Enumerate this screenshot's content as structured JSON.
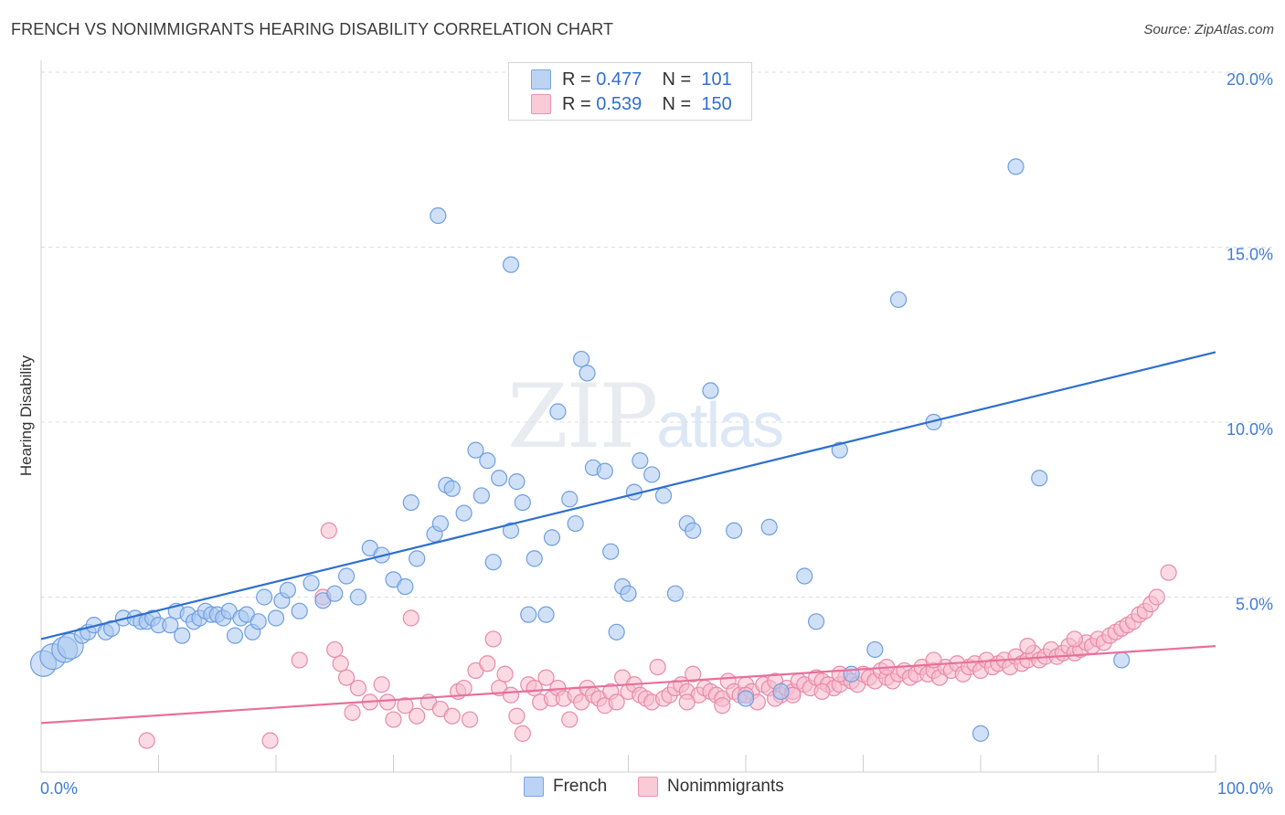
{
  "title": "FRENCH VS NONIMMIGRANTS HEARING DISABILITY CORRELATION CHART",
  "source": "Source: ZipAtlas.com",
  "watermark": {
    "zip": "ZIP",
    "atlas": "atlas"
  },
  "legend": {
    "r_label": "R =",
    "n_label": "N =",
    "french": {
      "r": "0.477",
      "n": "101"
    },
    "nonimmigrants": {
      "r": "0.539",
      "n": "150"
    }
  },
  "bottom_legend": {
    "french": "French",
    "nonimmigrants": "Nonimmigrants"
  },
  "colors": {
    "french_fill": "#aac8f0",
    "french_stroke": "#6f9ee0",
    "french_line": "#2d6fd0",
    "nonimm_fill": "#f7bccd",
    "nonimm_stroke": "#e88aa8",
    "nonimm_line": "#e8709a",
    "tick_text": "#3f7bd6",
    "grid": "#dddddd"
  },
  "chart_data": {
    "type": "scatter",
    "ylabel": "Hearing Disability",
    "xlim": [
      0,
      100
    ],
    "ylim": [
      0,
      20
    ],
    "x_tick_labels": [
      "0.0%",
      "100.0%"
    ],
    "y_ticks": [
      5,
      10,
      15,
      20
    ],
    "y_tick_labels": [
      "5.0%",
      "10.0%",
      "15.0%",
      "20.0%"
    ],
    "grid": true,
    "legend_placement": "top-center",
    "series": [
      {
        "name": "French",
        "trend": [
          [
            0,
            3.8
          ],
          [
            100,
            12.0
          ]
        ],
        "points": [
          [
            0.2,
            3.1
          ],
          [
            1.0,
            3.3
          ],
          [
            2.0,
            3.5
          ],
          [
            2.5,
            3.6
          ],
          [
            3.5,
            3.9
          ],
          [
            4.0,
            4.0
          ],
          [
            4.5,
            4.2
          ],
          [
            5.5,
            4.0
          ],
          [
            6.0,
            4.1
          ],
          [
            7.0,
            4.4
          ],
          [
            8.0,
            4.4
          ],
          [
            8.5,
            4.3
          ],
          [
            9.0,
            4.3
          ],
          [
            9.5,
            4.4
          ],
          [
            10.0,
            4.2
          ],
          [
            11.0,
            4.2
          ],
          [
            11.5,
            4.6
          ],
          [
            12.0,
            3.9
          ],
          [
            12.5,
            4.5
          ],
          [
            13.0,
            4.3
          ],
          [
            13.5,
            4.4
          ],
          [
            14.0,
            4.6
          ],
          [
            14.5,
            4.5
          ],
          [
            15.0,
            4.5
          ],
          [
            15.5,
            4.4
          ],
          [
            16.0,
            4.6
          ],
          [
            16.5,
            3.9
          ],
          [
            17.0,
            4.4
          ],
          [
            17.5,
            4.5
          ],
          [
            18.0,
            4.0
          ],
          [
            18.5,
            4.3
          ],
          [
            19.0,
            5.0
          ],
          [
            20.0,
            4.4
          ],
          [
            20.5,
            4.9
          ],
          [
            21.0,
            5.2
          ],
          [
            22.0,
            4.6
          ],
          [
            23.0,
            5.4
          ],
          [
            24.0,
            4.9
          ],
          [
            25.0,
            5.1
          ],
          [
            26.0,
            5.6
          ],
          [
            27.0,
            5.0
          ],
          [
            28.0,
            6.4
          ],
          [
            29.0,
            6.2
          ],
          [
            30.0,
            5.5
          ],
          [
            31.0,
            5.3
          ],
          [
            31.5,
            7.7
          ],
          [
            32.0,
            6.1
          ],
          [
            33.5,
            6.8
          ],
          [
            34.0,
            7.1
          ],
          [
            34.5,
            8.2
          ],
          [
            35.0,
            8.1
          ],
          [
            36.0,
            7.4
          ],
          [
            37.0,
            9.2
          ],
          [
            37.5,
            7.9
          ],
          [
            38.0,
            8.9
          ],
          [
            38.5,
            6.0
          ],
          [
            39.0,
            8.4
          ],
          [
            40.0,
            6.9
          ],
          [
            40.5,
            8.3
          ],
          [
            41.0,
            7.7
          ],
          [
            41.5,
            4.5
          ],
          [
            42.0,
            6.1
          ],
          [
            43.0,
            4.5
          ],
          [
            43.5,
            6.7
          ],
          [
            44.0,
            10.3
          ],
          [
            45.0,
            7.8
          ],
          [
            45.5,
            7.1
          ],
          [
            46.0,
            11.8
          ],
          [
            46.5,
            11.4
          ],
          [
            47.0,
            8.7
          ],
          [
            48.0,
            8.6
          ],
          [
            48.5,
            6.3
          ],
          [
            49.0,
            4.0
          ],
          [
            49.5,
            5.3
          ],
          [
            50.0,
            5.1
          ],
          [
            50.5,
            8.0
          ],
          [
            51.0,
            8.9
          ],
          [
            52.0,
            8.5
          ],
          [
            53.0,
            7.9
          ],
          [
            54.0,
            5.1
          ],
          [
            55.0,
            7.1
          ],
          [
            55.5,
            6.9
          ],
          [
            57.0,
            10.9
          ],
          [
            59.0,
            6.9
          ],
          [
            60.0,
            2.1
          ],
          [
            62.0,
            7.0
          ],
          [
            63.0,
            2.3
          ],
          [
            65.0,
            5.6
          ],
          [
            66.0,
            4.3
          ],
          [
            68.0,
            9.2
          ],
          [
            69.0,
            2.8
          ],
          [
            71.0,
            3.5
          ],
          [
            73.0,
            13.5
          ],
          [
            76.0,
            10.0
          ],
          [
            80.0,
            1.1
          ],
          [
            85.0,
            8.4
          ],
          [
            92.0,
            3.2
          ],
          [
            33.8,
            15.9
          ],
          [
            40.0,
            14.5
          ],
          [
            45.0,
            18.9
          ],
          [
            83.0,
            17.3
          ]
        ]
      },
      {
        "name": "Nonimmigrants",
        "trend": [
          [
            0,
            1.4
          ],
          [
            100,
            3.6
          ]
        ],
        "points": [
          [
            9.0,
            0.9
          ],
          [
            19.5,
            0.9
          ],
          [
            22.0,
            3.2
          ],
          [
            24.0,
            5.0
          ],
          [
            24.5,
            6.9
          ],
          [
            25.0,
            3.5
          ],
          [
            25.5,
            3.1
          ],
          [
            26.0,
            2.7
          ],
          [
            26.5,
            1.7
          ],
          [
            27.0,
            2.4
          ],
          [
            28.0,
            2.0
          ],
          [
            29.0,
            2.5
          ],
          [
            29.5,
            2.0
          ],
          [
            30.0,
            1.5
          ],
          [
            31.0,
            1.9
          ],
          [
            31.5,
            4.4
          ],
          [
            32.0,
            1.6
          ],
          [
            33.0,
            2.0
          ],
          [
            34.0,
            1.8
          ],
          [
            35.0,
            1.6
          ],
          [
            35.5,
            2.3
          ],
          [
            36.0,
            2.4
          ],
          [
            36.5,
            1.5
          ],
          [
            37.0,
            2.9
          ],
          [
            38.0,
            3.1
          ],
          [
            38.5,
            3.8
          ],
          [
            39.0,
            2.4
          ],
          [
            39.5,
            2.8
          ],
          [
            40.0,
            2.2
          ],
          [
            40.5,
            1.6
          ],
          [
            41.0,
            1.1
          ],
          [
            41.5,
            2.5
          ],
          [
            42.0,
            2.4
          ],
          [
            42.5,
            2.0
          ],
          [
            43.0,
            2.7
          ],
          [
            43.5,
            2.1
          ],
          [
            44.0,
            2.4
          ],
          [
            44.5,
            2.1
          ],
          [
            45.0,
            1.5
          ],
          [
            45.5,
            2.2
          ],
          [
            46.0,
            2.0
          ],
          [
            46.5,
            2.4
          ],
          [
            47.0,
            2.2
          ],
          [
            47.5,
            2.1
          ],
          [
            48.0,
            1.9
          ],
          [
            48.5,
            2.3
          ],
          [
            49.0,
            2.0
          ],
          [
            49.5,
            2.7
          ],
          [
            50.0,
            2.3
          ],
          [
            50.5,
            2.5
          ],
          [
            51.0,
            2.2
          ],
          [
            51.5,
            2.1
          ],
          [
            52.0,
            2.0
          ],
          [
            52.5,
            3.0
          ],
          [
            53.0,
            2.1
          ],
          [
            53.5,
            2.2
          ],
          [
            54.0,
            2.4
          ],
          [
            54.5,
            2.5
          ],
          [
            55.0,
            2.3
          ],
          [
            55.5,
            2.8
          ],
          [
            56.0,
            2.2
          ],
          [
            56.5,
            2.4
          ],
          [
            57.0,
            2.3
          ],
          [
            57.5,
            2.2
          ],
          [
            58.0,
            2.1
          ],
          [
            58.5,
            2.6
          ],
          [
            59.0,
            2.3
          ],
          [
            59.5,
            2.2
          ],
          [
            60.0,
            2.5
          ],
          [
            60.5,
            2.3
          ],
          [
            61.0,
            2.0
          ],
          [
            61.5,
            2.5
          ],
          [
            62.0,
            2.4
          ],
          [
            62.5,
            2.6
          ],
          [
            63.0,
            2.2
          ],
          [
            63.5,
            2.4
          ],
          [
            64.0,
            2.3
          ],
          [
            64.5,
            2.6
          ],
          [
            65.0,
            2.5
          ],
          [
            65.5,
            2.4
          ],
          [
            66.0,
            2.7
          ],
          [
            66.5,
            2.6
          ],
          [
            67.0,
            2.5
          ],
          [
            67.5,
            2.4
          ],
          [
            68.0,
            2.5
          ],
          [
            68.5,
            2.7
          ],
          [
            69.0,
            2.6
          ],
          [
            69.5,
            2.5
          ],
          [
            70.0,
            2.8
          ],
          [
            70.5,
            2.7
          ],
          [
            71.0,
            2.6
          ],
          [
            71.5,
            2.9
          ],
          [
            72.0,
            2.7
          ],
          [
            72.5,
            2.6
          ],
          [
            73.0,
            2.8
          ],
          [
            73.5,
            2.9
          ],
          [
            74.0,
            2.7
          ],
          [
            74.5,
            2.8
          ],
          [
            75.0,
            3.0
          ],
          [
            75.5,
            2.8
          ],
          [
            76.0,
            2.9
          ],
          [
            76.5,
            2.7
          ],
          [
            77.0,
            3.0
          ],
          [
            77.5,
            2.9
          ],
          [
            78.0,
            3.1
          ],
          [
            78.5,
            2.8
          ],
          [
            79.0,
            3.0
          ],
          [
            79.5,
            3.1
          ],
          [
            80.0,
            2.9
          ],
          [
            80.5,
            3.2
          ],
          [
            81.0,
            3.0
          ],
          [
            81.5,
            3.1
          ],
          [
            82.0,
            3.2
          ],
          [
            82.5,
            3.0
          ],
          [
            83.0,
            3.3
          ],
          [
            83.5,
            3.1
          ],
          [
            84.0,
            3.2
          ],
          [
            84.5,
            3.4
          ],
          [
            85.0,
            3.2
          ],
          [
            85.5,
            3.3
          ],
          [
            86.0,
            3.5
          ],
          [
            86.5,
            3.3
          ],
          [
            87.0,
            3.4
          ],
          [
            87.5,
            3.6
          ],
          [
            88.0,
            3.4
          ],
          [
            88.5,
            3.5
          ],
          [
            89.0,
            3.7
          ],
          [
            89.5,
            3.6
          ],
          [
            90.0,
            3.8
          ],
          [
            90.5,
            3.7
          ],
          [
            91.0,
            3.9
          ],
          [
            91.5,
            4.0
          ],
          [
            92.0,
            4.1
          ],
          [
            92.5,
            4.2
          ],
          [
            93.0,
            4.3
          ],
          [
            93.5,
            4.5
          ],
          [
            94.0,
            4.6
          ],
          [
            94.5,
            4.8
          ],
          [
            95.0,
            5.0
          ],
          [
            96.0,
            5.7
          ],
          [
            60.0,
            2.2
          ],
          [
            64.0,
            2.2
          ],
          [
            68.0,
            2.8
          ],
          [
            72.0,
            3.0
          ],
          [
            76.0,
            3.2
          ],
          [
            84.0,
            3.6
          ],
          [
            88.0,
            3.8
          ],
          [
            55.0,
            2.0
          ],
          [
            58.0,
            1.9
          ],
          [
            62.5,
            2.1
          ],
          [
            66.5,
            2.3
          ]
        ]
      }
    ]
  }
}
